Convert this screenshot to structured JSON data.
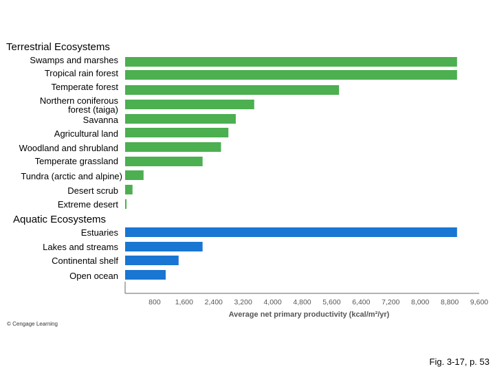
{
  "chart_data": {
    "type": "bar",
    "orientation": "horizontal",
    "groups": [
      {
        "title": "Terrestrial Ecosystems",
        "color": "#4caf50",
        "categories": [
          "Swamps and marshes",
          "Tropical rain forest",
          "Temperate forest",
          "Northern coniferous forest (taiga)",
          "Savanna",
          "Agricultural land",
          "Woodland and shrubland",
          "Temperate grassland",
          "Tundra (arctic and alpine)",
          "Desert scrub",
          "Extreme desert"
        ],
        "values": [
          9000,
          9000,
          5800,
          3500,
          3000,
          2800,
          2600,
          2100,
          500,
          200,
          30
        ]
      },
      {
        "title": "Aquatic Ecosystems",
        "color": "#1976d2",
        "categories": [
          "Estuaries",
          "Lakes and streams",
          "Continental shelf",
          "Open ocean"
        ],
        "values": [
          9000,
          2100,
          1450,
          1100
        ]
      }
    ],
    "xticks": [
      "800",
      "1,600",
      "2,400",
      "3,200",
      "4,000",
      "4,800",
      "5,600",
      "6,400",
      "7,200",
      "8,000",
      "8,800",
      "9,600"
    ],
    "xlim": [
      0,
      9600
    ],
    "xlabel": "Average net primary productivity (kcal/m²/yr)"
  },
  "credit": "© Cengage Learning",
  "caption": "Fig. 3-17, p. 53"
}
